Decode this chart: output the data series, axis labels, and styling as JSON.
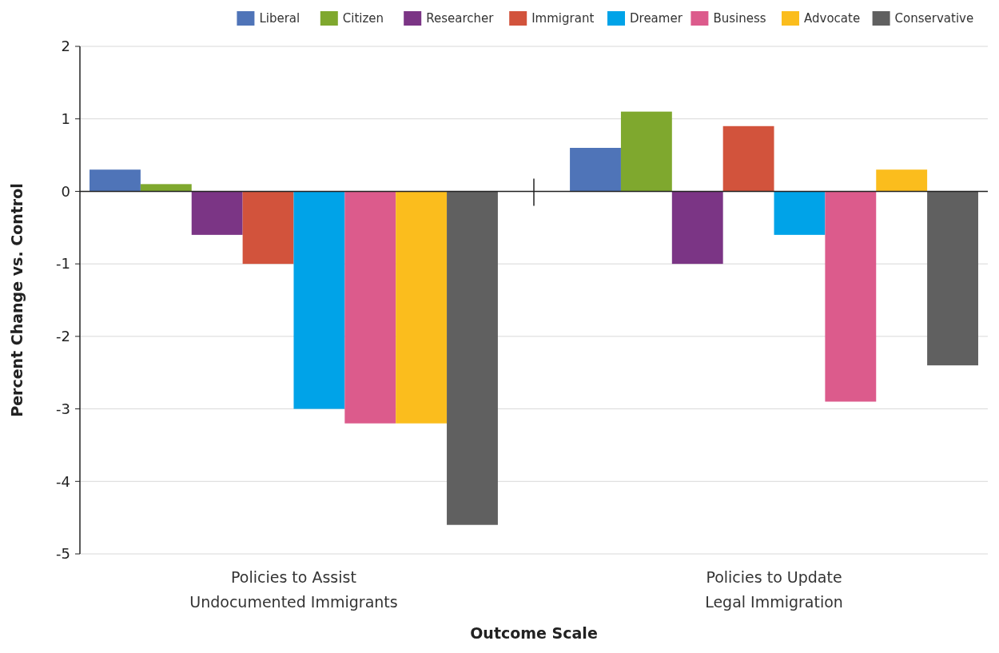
{
  "chart_data": {
    "type": "bar",
    "xlabel": "Outcome Scale",
    "ylabel": "Percent Change vs. Control",
    "categories": [
      "Policies to Assist\nUndocumented Immigrants",
      "Policies to Update\nLegal Immigration"
    ],
    "series": [
      {
        "name": "Liberal",
        "color": "#4f74b8",
        "values": [
          0.3,
          0.6
        ]
      },
      {
        "name": "Citizen",
        "color": "#7fa82e",
        "values": [
          0.1,
          1.1
        ]
      },
      {
        "name": "Researcher",
        "color": "#7b3585",
        "values": [
          -0.6,
          -1.0
        ]
      },
      {
        "name": "Immigrant",
        "color": "#d2533c",
        "values": [
          -1.0,
          0.9
        ]
      },
      {
        "name": "Dreamer",
        "color": "#00a3e8",
        "values": [
          -3.0,
          -0.6
        ]
      },
      {
        "name": "Business",
        "color": "#dc5b8c",
        "values": [
          -3.2,
          -2.9
        ]
      },
      {
        "name": "Advocate",
        "color": "#fbbd1d",
        "values": [
          -3.2,
          0.3
        ]
      },
      {
        "name": "Conservative",
        "color": "#606060",
        "values": [
          -4.6,
          -2.4
        ]
      }
    ],
    "ylim": [
      -5,
      2
    ],
    "yticks": [
      -5,
      -4,
      -3,
      -2,
      -1,
      0,
      1,
      2
    ],
    "grid": "y",
    "legend": "top"
  }
}
